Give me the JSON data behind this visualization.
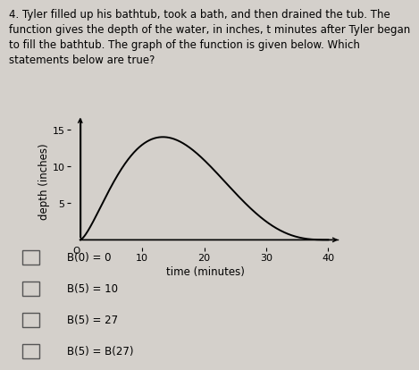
{
  "title_text": "4. Tyler filled up his bathtub, took a bath, and then drained the tub. The\nfunction gives the depth of the water, in inches, t minutes after Tyler began\nto fill the bathtub. The graph of the function is given below. Which\nstatements below are true?",
  "xlabel": "time (minutes)",
  "ylabel": "depth (inches)",
  "yticks": [
    5,
    10,
    15
  ],
  "xticks": [
    10,
    20,
    30,
    40
  ],
  "xlim": [
    0,
    42
  ],
  "ylim": [
    0,
    17
  ],
  "peak_t": 18,
  "peak_y": 14.0,
  "curve_color": "#000000",
  "background_color": "#d4d0cb",
  "checkboxes": [
    "B(0) = 0",
    "B(5) = 10",
    "B(5) = 27",
    "B(5) = B(27)"
  ],
  "title_fontsize": 8.5,
  "axis_label_fontsize": 8.5,
  "tick_fontsize": 8,
  "curve_p": 1.5,
  "curve_q": 3.0,
  "curve_end": 40
}
